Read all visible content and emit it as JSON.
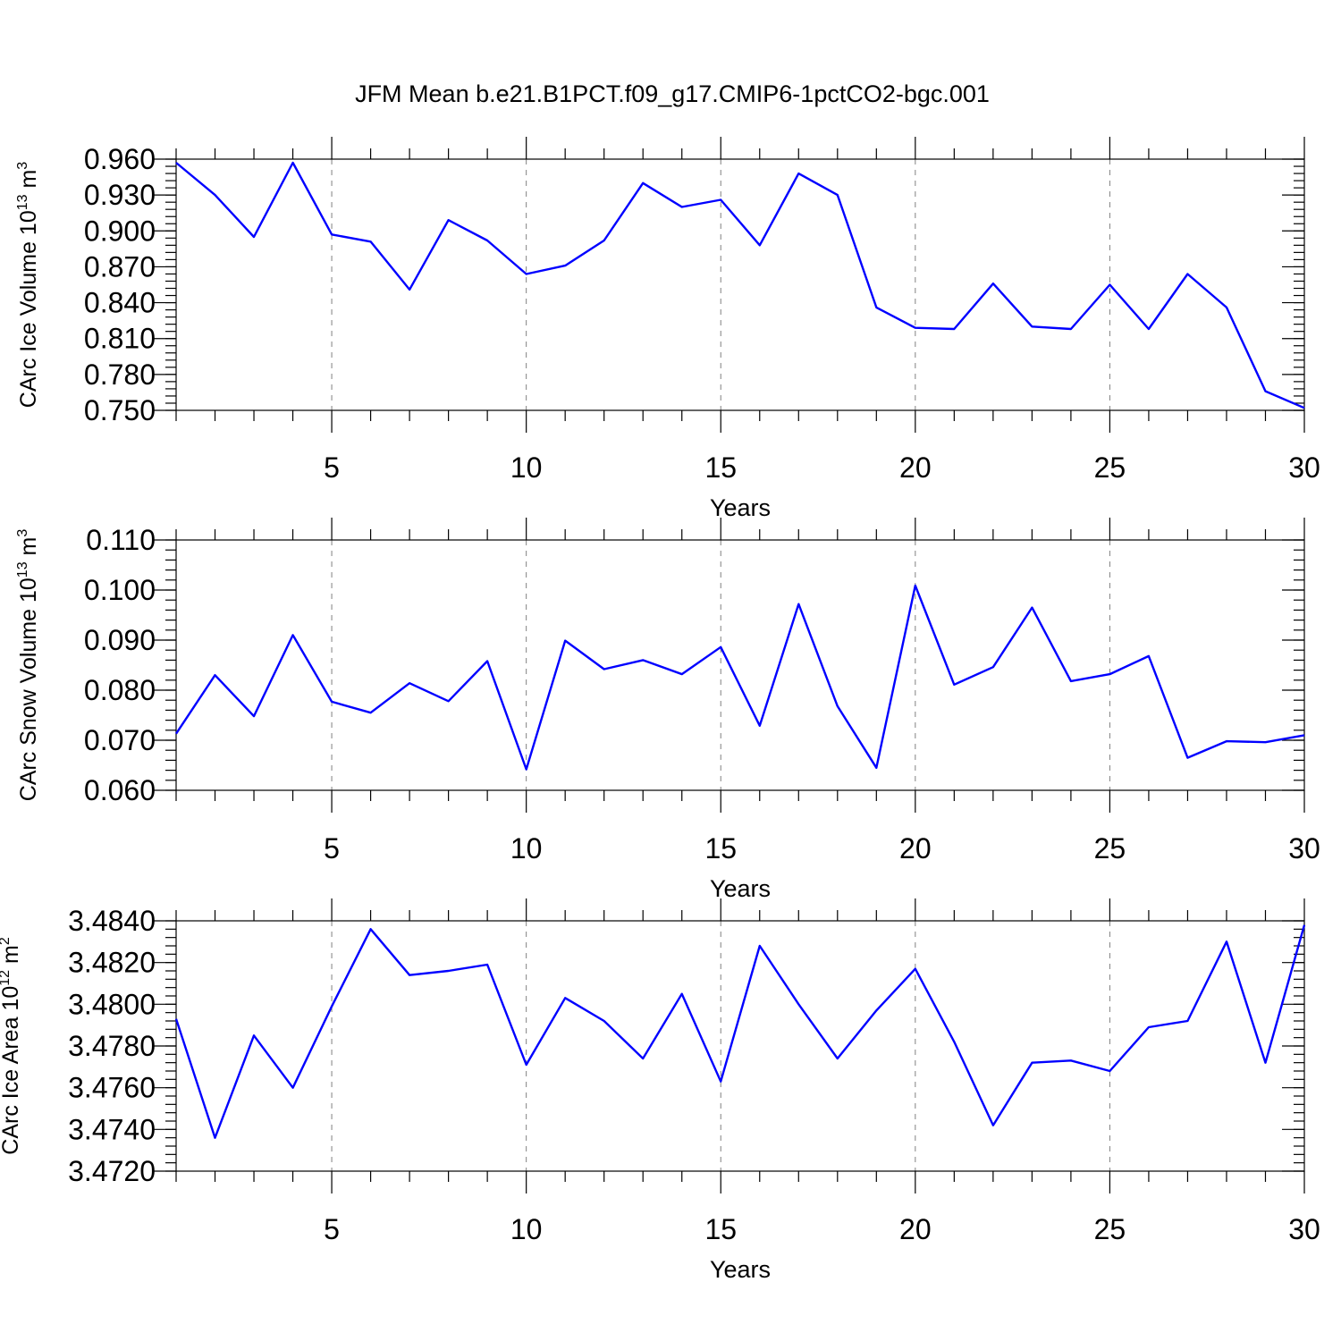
{
  "title": "JFM Mean b.e21.B1PCT.f09_g17.CMIP6-1pctCO2-bgc.001",
  "colors": {
    "line": "#0000ff",
    "grid": "#808080",
    "axis": "#000000"
  },
  "chart_data": [
    {
      "type": "line",
      "xlabel": "Years",
      "ylabel_main": "CArc Ice Volume 10",
      "ylabel_exp": "13",
      "ylabel_unit": " m",
      "ylabel_unit_exp": "3",
      "xlim": [
        1,
        30
      ],
      "ylim": [
        0.75,
        0.96
      ],
      "xticks": [
        5,
        10,
        15,
        20,
        25,
        30
      ],
      "xtick_labels": [
        "5",
        "10",
        "15",
        "20",
        "25",
        "30"
      ],
      "yticks": [
        0.75,
        0.78,
        0.81,
        0.84,
        0.87,
        0.9,
        0.93,
        0.96
      ],
      "ytick_labels": [
        "0.750",
        "0.780",
        "0.810",
        "0.840",
        "0.870",
        "0.900",
        "0.930",
        "0.960"
      ],
      "y_minor_step": 0.006,
      "x": [
        1,
        2,
        3,
        4,
        5,
        6,
        7,
        8,
        9,
        10,
        11,
        12,
        13,
        14,
        15,
        16,
        17,
        18,
        19,
        20,
        21,
        22,
        23,
        24,
        25,
        26,
        27,
        28,
        29,
        30
      ],
      "values": [
        0.957,
        0.93,
        0.895,
        0.957,
        0.897,
        0.891,
        0.851,
        0.909,
        0.892,
        0.864,
        0.871,
        0.892,
        0.94,
        0.92,
        0.926,
        0.888,
        0.948,
        0.93,
        0.836,
        0.819,
        0.818,
        0.856,
        0.82,
        0.818,
        0.855,
        0.818,
        0.864,
        0.836,
        0.766,
        0.752
      ]
    },
    {
      "type": "line",
      "xlabel": "Years",
      "ylabel_main": "CArc Snow Volume 10",
      "ylabel_exp": "13",
      "ylabel_unit": " m",
      "ylabel_unit_exp": "3",
      "xlim": [
        1,
        30
      ],
      "ylim": [
        0.06,
        0.11
      ],
      "xticks": [
        5,
        10,
        15,
        20,
        25,
        30
      ],
      "xtick_labels": [
        "5",
        "10",
        "15",
        "20",
        "25",
        "30"
      ],
      "yticks": [
        0.06,
        0.07,
        0.08,
        0.09,
        0.1,
        0.11
      ],
      "ytick_labels": [
        "0.060",
        "0.070",
        "0.080",
        "0.090",
        "0.100",
        "0.110"
      ],
      "y_minor_step": 0.002,
      "x": [
        1,
        2,
        3,
        4,
        5,
        6,
        7,
        8,
        9,
        10,
        11,
        12,
        13,
        14,
        15,
        16,
        17,
        18,
        19,
        20,
        21,
        22,
        23,
        24,
        25,
        26,
        27,
        28,
        29,
        30
      ],
      "values": [
        0.0713,
        0.083,
        0.0748,
        0.091,
        0.0777,
        0.0755,
        0.0814,
        0.0778,
        0.0858,
        0.0642,
        0.0899,
        0.0842,
        0.086,
        0.0832,
        0.0886,
        0.0729,
        0.0972,
        0.0768,
        0.0645,
        0.1009,
        0.0811,
        0.0846,
        0.0965,
        0.0818,
        0.0832,
        0.0868,
        0.0665,
        0.0698,
        0.0696,
        0.071
      ]
    },
    {
      "type": "line",
      "xlabel": "Years",
      "ylabel_main": "CArc Ice Area 10",
      "ylabel_exp": "12",
      "ylabel_unit": " m",
      "ylabel_unit_exp": "2",
      "xlim": [
        1,
        30
      ],
      "ylim": [
        3.472,
        3.484
      ],
      "xticks": [
        5,
        10,
        15,
        20,
        25,
        30
      ],
      "xtick_labels": [
        "5",
        "10",
        "15",
        "20",
        "25",
        "30"
      ],
      "yticks": [
        3.472,
        3.474,
        3.476,
        3.478,
        3.48,
        3.482,
        3.484
      ],
      "ytick_labels": [
        "3.4720",
        "3.4740",
        "3.4760",
        "3.4780",
        "3.4800",
        "3.4820",
        "3.4840"
      ],
      "y_minor_step": 0.0004,
      "x": [
        1,
        2,
        3,
        4,
        5,
        6,
        7,
        8,
        9,
        10,
        11,
        12,
        13,
        14,
        15,
        16,
        17,
        18,
        19,
        20,
        21,
        22,
        23,
        24,
        25,
        26,
        27,
        28,
        29,
        30
      ],
      "values": [
        3.4793,
        3.4736,
        3.4785,
        3.476,
        3.4799,
        3.4836,
        3.4814,
        3.4816,
        3.4819,
        3.4771,
        3.4803,
        3.4792,
        3.4774,
        3.4805,
        3.4763,
        3.4828,
        3.48,
        3.4774,
        3.4797,
        3.4817,
        3.4782,
        3.4742,
        3.4772,
        3.4773,
        3.4768,
        3.4789,
        3.4792,
        3.483,
        3.4772,
        3.4838
      ]
    }
  ]
}
